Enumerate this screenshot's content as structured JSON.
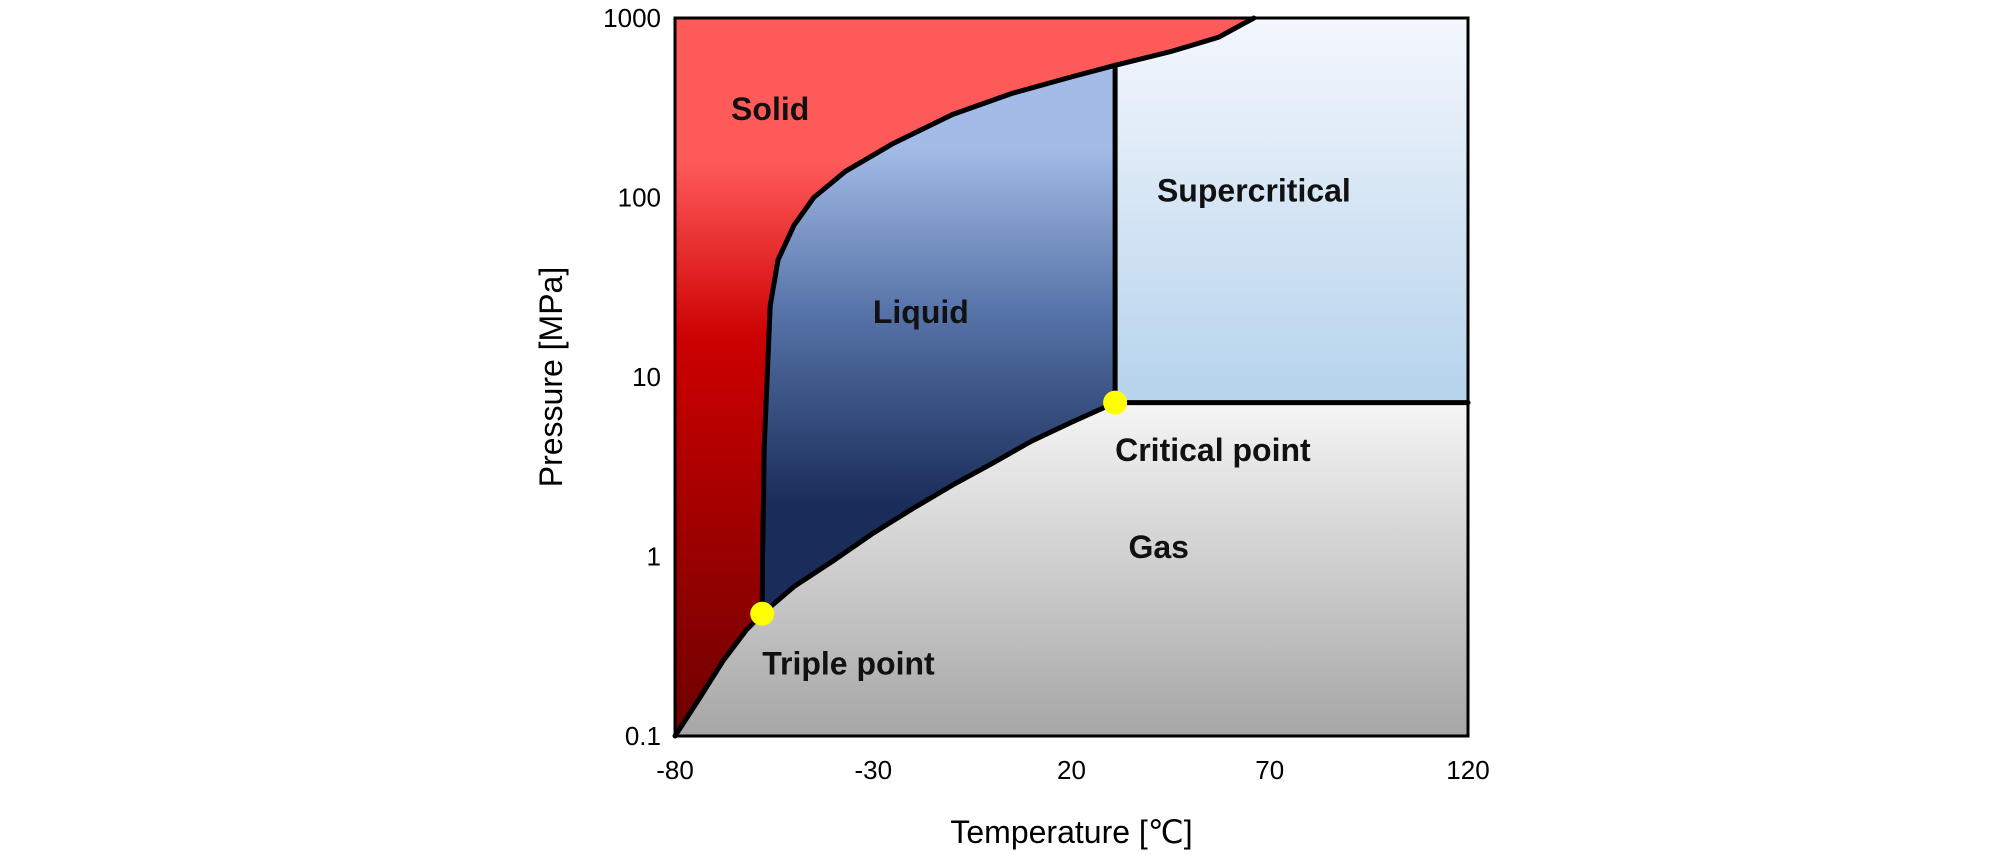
{
  "chart_data": {
    "type": "area",
    "xlabel": "Temperature [℃]",
    "ylabel": "Pressure [MPa]",
    "x_ticks": [
      -80,
      -30,
      20,
      70,
      120
    ],
    "x_tick_labels": [
      "-80",
      "-30",
      "20",
      "70",
      "120"
    ],
    "y_ticks": [
      0.1,
      1,
      10,
      100,
      1000
    ],
    "y_tick_labels": [
      "0.1",
      "1",
      "10",
      "100",
      "1000"
    ],
    "xlim": [
      -80,
      120
    ],
    "ylim": [
      0.1,
      1000
    ],
    "y_scale": "log",
    "grid": false,
    "regions": [
      {
        "name": "Solid",
        "label": "Solid",
        "color_top": "#ff5a5a",
        "color_mid": "#cc0000",
        "color_bottom": "#6e0000",
        "label_at": [
          -56,
          270
        ]
      },
      {
        "name": "Liquid",
        "label": "Liquid",
        "color_top": "#a3bbe6",
        "color_mid": "#5673a8",
        "color_bottom": "#1a2d5a",
        "label_at": [
          -18,
          20
        ]
      },
      {
        "name": "Gas",
        "label": "Gas",
        "color_top": "#f5f5f5",
        "color_bottom": "#a6a6a6",
        "label_at": [
          42,
          0.98
        ]
      },
      {
        "name": "Supercritical",
        "label": "Supercritical",
        "color_top": "#f4f7fd",
        "color_bottom": "#b5d3ec",
        "label_at": [
          66,
          95
        ]
      }
    ],
    "points": [
      {
        "name": "Triple point",
        "label": "Triple point",
        "x": -58,
        "y": 0.48,
        "color": "#ffff00",
        "label_at": [
          -58,
          0.22
        ]
      },
      {
        "name": "Critical point",
        "label": "Critical point",
        "x": 31,
        "y": 7.2,
        "color": "#ffff00",
        "label_at": [
          31,
          3.4
        ]
      }
    ],
    "curves": {
      "sublimation": {
        "x": [
          -80,
          -74,
          -68,
          -62,
          -58
        ],
        "y": [
          0.1,
          0.16,
          0.26,
          0.39,
          0.48
        ]
      },
      "melting": {
        "x": [
          -58,
          -57.9,
          -57.5,
          -56,
          -54,
          -50,
          -45,
          -37,
          -25,
          -10,
          5,
          20,
          31,
          45,
          57,
          66
        ],
        "y": [
          0.48,
          1,
          4,
          25,
          45,
          70,
          100,
          140,
          200,
          290,
          380,
          470,
          545,
          650,
          780,
          1000
        ]
      },
      "vaporization": {
        "x": [
          -58,
          -50,
          -40,
          -30,
          -20,
          -10,
          0,
          10,
          20,
          31
        ],
        "y": [
          0.48,
          0.68,
          0.95,
          1.35,
          1.85,
          2.5,
          3.3,
          4.4,
          5.6,
          7.2
        ]
      },
      "critical_isotherm": {
        "x": [
          31,
          31
        ],
        "y": [
          7.2,
          545
        ]
      },
      "critical_isobar": {
        "x": [
          31,
          120
        ],
        "y": [
          7.2,
          7.2
        ]
      }
    }
  }
}
